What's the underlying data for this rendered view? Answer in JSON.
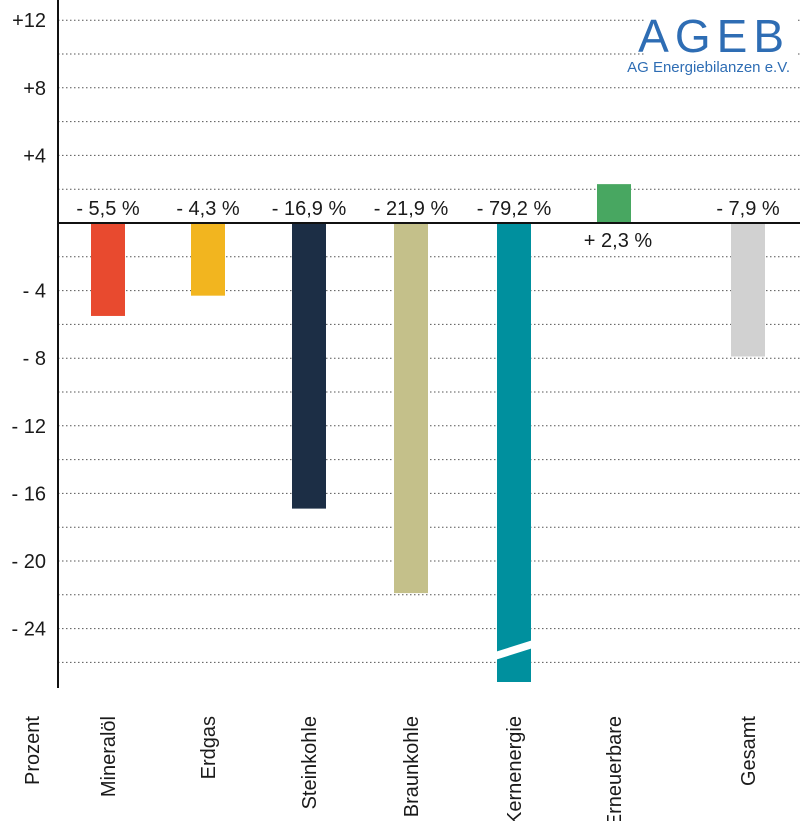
{
  "brand": {
    "name": "AGEB",
    "subtitle": "AG Energiebilanzen e.V.",
    "color": "#2e6db4"
  },
  "chart_data": {
    "type": "bar",
    "ylabel": "Prozent",
    "ylim": [
      -27,
      13
    ],
    "grid": true,
    "y_ticks": [
      12,
      8,
      4,
      -4,
      -8,
      -12,
      -16,
      -20,
      -24
    ],
    "y_tick_labels": [
      "+12",
      "+8",
      "+4",
      "- 4",
      "- 8",
      "- 12",
      "- 16",
      "- 20",
      "- 24"
    ],
    "categories": [
      "Mineralöl",
      "Erdgas",
      "Steinkohle",
      "Braunkohle",
      "Kernenergie",
      "Erneuerbare",
      "Gesamt"
    ],
    "values": [
      -5.5,
      -4.3,
      -16.9,
      -21.9,
      -79.2,
      2.3,
      -7.9
    ],
    "value_labels": [
      "- 5,5 %",
      "- 4,3 %",
      "- 16,9 %",
      "- 21,9 %",
      "- 79,2 %",
      "+ 2,3 %",
      "- 7,9 %"
    ],
    "colors": [
      "#e84a2f",
      "#f2b51f",
      "#1c2e45",
      "#c4c08a",
      "#00909e",
      "#48a761",
      "#d1d1d1"
    ],
    "broken_bar": "Kernenergie"
  }
}
